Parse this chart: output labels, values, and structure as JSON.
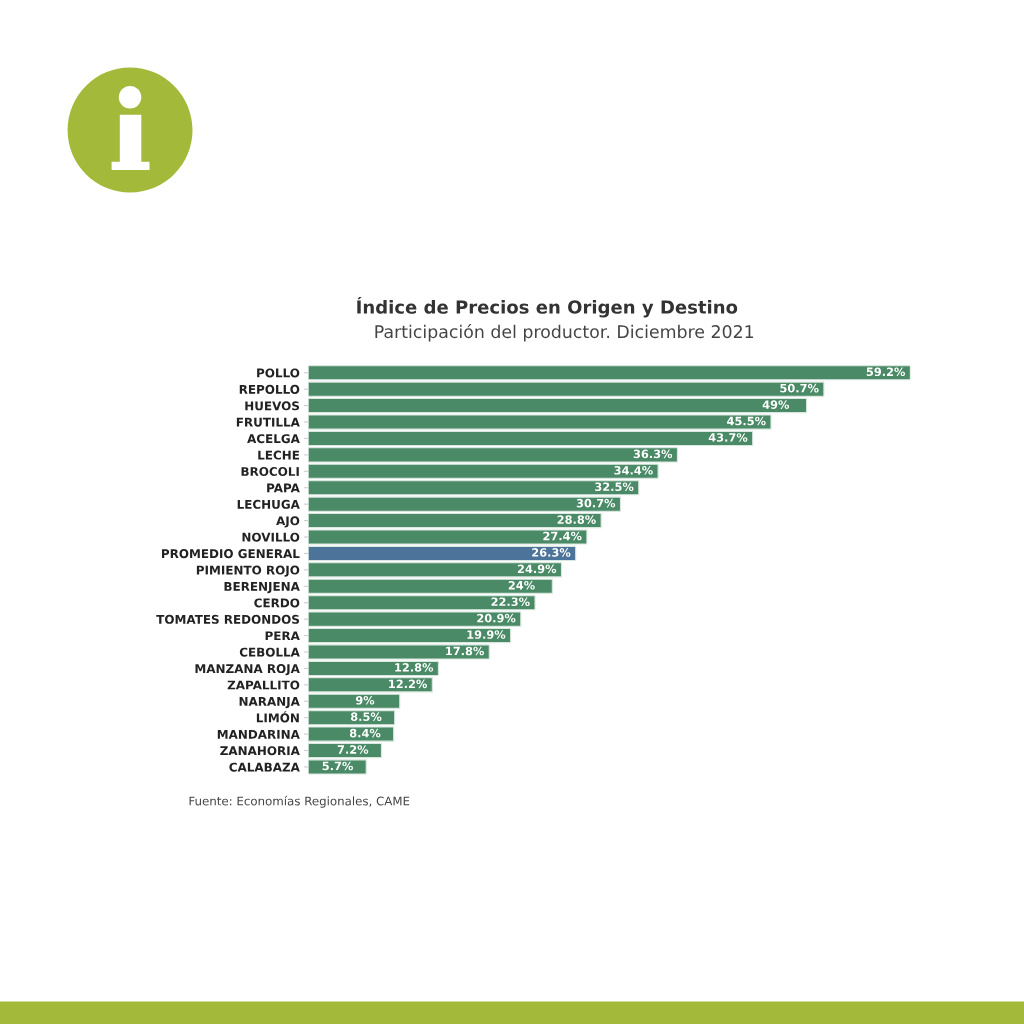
{
  "chart_data": {
    "type": "bar",
    "orientation": "horizontal",
    "title": "Índice de Precios en Origen y Destino",
    "subtitle": "Participación del productor. Diciembre 2021",
    "categories": [
      "POLLO",
      "REPOLLO",
      "HUEVOS",
      "FRUTILLA",
      "ACELGA",
      "LECHE",
      "BROCOLI",
      "PAPA",
      "LECHUGA",
      "AJO",
      "NOVILLO",
      "PROMEDIO GENERAL",
      "PIMIENTO ROJO",
      "BERENJENA",
      "CERDO",
      "TOMATES REDONDOS",
      "PERA",
      "CEBOLLA",
      "MANZANA ROJA",
      "ZAPALLITO",
      "NARANJA",
      "LIMÓN",
      "MANDARINA",
      "ZANAHORIA",
      "CALABAZA"
    ],
    "values": [
      59.2,
      50.7,
      49,
      45.5,
      43.7,
      36.3,
      34.4,
      32.5,
      30.7,
      28.8,
      27.4,
      26.3,
      24.9,
      24,
      22.3,
      20.9,
      19.9,
      17.8,
      12.8,
      12.2,
      9,
      8.5,
      8.4,
      7.2,
      5.7
    ],
    "value_labels": [
      "59.2%",
      "50.7%",
      "49%",
      "45.5%",
      "43.7%",
      "36.3%",
      "34.4%",
      "32.5%",
      "30.7%",
      "28.8%",
      "27.4%",
      "26.3%",
      "24.9%",
      "24%",
      "22.3%",
      "20.9%",
      "19.9%",
      "17.8%",
      "12.8%",
      "12.2%",
      "9%",
      "8.5%",
      "8.4%",
      "7.2%",
      "5.7%"
    ],
    "colors": [
      "#4a8a66",
      "#4a8a66",
      "#4a8a66",
      "#4a8a66",
      "#4a8a66",
      "#4a8a66",
      "#4a8a66",
      "#4a8a66",
      "#4a8a66",
      "#4a8a66",
      "#4a8a66",
      "#4c7399",
      "#4a8a66",
      "#4a8a66",
      "#4a8a66",
      "#4a8a66",
      "#4a8a66",
      "#4a8a66",
      "#4a8a66",
      "#4a8a66",
      "#4a8a66",
      "#4a8a66",
      "#4a8a66",
      "#4a8a66",
      "#4a8a66"
    ],
    "annotations": [
      "Fuente: Economías Regionales, CAME"
    ],
    "grid": false,
    "legend": false
  }
}
